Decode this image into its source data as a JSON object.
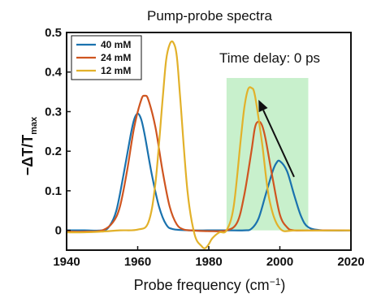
{
  "chart_data": {
    "type": "line",
    "title": "Pump-probe spectra",
    "xlabel": "Probe frequency (cm",
    "xlabel_sup": "−1",
    "xlabel_tail": ")",
    "ylabel": "−ΔT/T",
    "ylabel_sub": "max",
    "xlim": [
      1940,
      2020
    ],
    "ylim": [
      -0.05,
      0.5
    ],
    "x_ticks": [
      1940,
      1960,
      1980,
      2000,
      2020
    ],
    "x_tick_labels": [
      "1940",
      "1960",
      "1980",
      "2000",
      "2020"
    ],
    "y_ticks": [
      0,
      0.1,
      0.2,
      0.3,
      0.4,
      0.5
    ],
    "y_tick_labels": [
      "0",
      "0.1",
      "0.2",
      "0.3",
      "0.4",
      "0.5"
    ],
    "grid": false,
    "legend_position": "top-left",
    "annotation": "Time delay: 0 ps",
    "highlight": {
      "x_range": [
        1985,
        2008
      ],
      "y_range": [
        0,
        0.385
      ],
      "color": "#c8f0cc"
    },
    "arrow": {
      "from": [
        2004,
        0.135
      ],
      "to": [
        1994,
        0.33
      ]
    },
    "series": [
      {
        "name": "40 mM",
        "color": "#1a72ae",
        "x": [
          1940,
          1945,
          1950,
          1952,
          1954,
          1956,
          1958,
          1959,
          1960,
          1961,
          1962,
          1964,
          1966,
          1968,
          1970,
          1975,
          1980,
          1985,
          1990,
          1992,
          1994,
          1996,
          1998,
          1999,
          2000,
          2002,
          2004,
          2006,
          2008,
          2012,
          2020
        ],
        "y": [
          0,
          0,
          0,
          0.01,
          0.05,
          0.14,
          0.24,
          0.28,
          0.295,
          0.28,
          0.24,
          0.14,
          0.06,
          0.015,
          0.003,
          0,
          0,
          0,
          0,
          0.004,
          0.03,
          0.09,
          0.15,
          0.17,
          0.175,
          0.15,
          0.09,
          0.035,
          0.008,
          0,
          0
        ]
      },
      {
        "name": "24 mM",
        "color": "#cf5520",
        "x": [
          1940,
          1945,
          1950,
          1953,
          1955,
          1957,
          1959,
          1961,
          1962,
          1963,
          1965,
          1967,
          1969,
          1971,
          1973,
          1975,
          1980,
          1985,
          1988,
          1990,
          1992,
          1993,
          1994,
          1995,
          1996,
          1998,
          2000,
          2002,
          2004,
          2010,
          2020
        ],
        "y": [
          -0.003,
          -0.003,
          0,
          0.02,
          0.06,
          0.15,
          0.26,
          0.33,
          0.34,
          0.33,
          0.26,
          0.15,
          0.06,
          0.015,
          0.002,
          0,
          -0.002,
          0,
          0.02,
          0.09,
          0.2,
          0.26,
          0.275,
          0.265,
          0.23,
          0.13,
          0.04,
          0.008,
          0,
          0,
          0
        ]
      },
      {
        "name": "12 mM",
        "color": "#e2b12a",
        "x": [
          1940,
          1945,
          1950,
          1955,
          1960,
          1963,
          1965,
          1967,
          1968,
          1969,
          1970,
          1971,
          1972,
          1974,
          1976,
          1978,
          1979,
          1980,
          1981,
          1983,
          1985,
          1987,
          1989,
          1990,
          1991,
          1992,
          1993,
          1995,
          1997,
          2000,
          2005,
          2020
        ],
        "y": [
          -0.005,
          -0.005,
          -0.003,
          0,
          0.002,
          0.02,
          0.12,
          0.33,
          0.43,
          0.47,
          0.475,
          0.44,
          0.33,
          0.1,
          -0.01,
          -0.04,
          -0.045,
          -0.035,
          -0.02,
          -0.005,
          0,
          0.06,
          0.23,
          0.31,
          0.355,
          0.36,
          0.34,
          0.22,
          0.08,
          0.005,
          0,
          0
        ]
      }
    ]
  }
}
